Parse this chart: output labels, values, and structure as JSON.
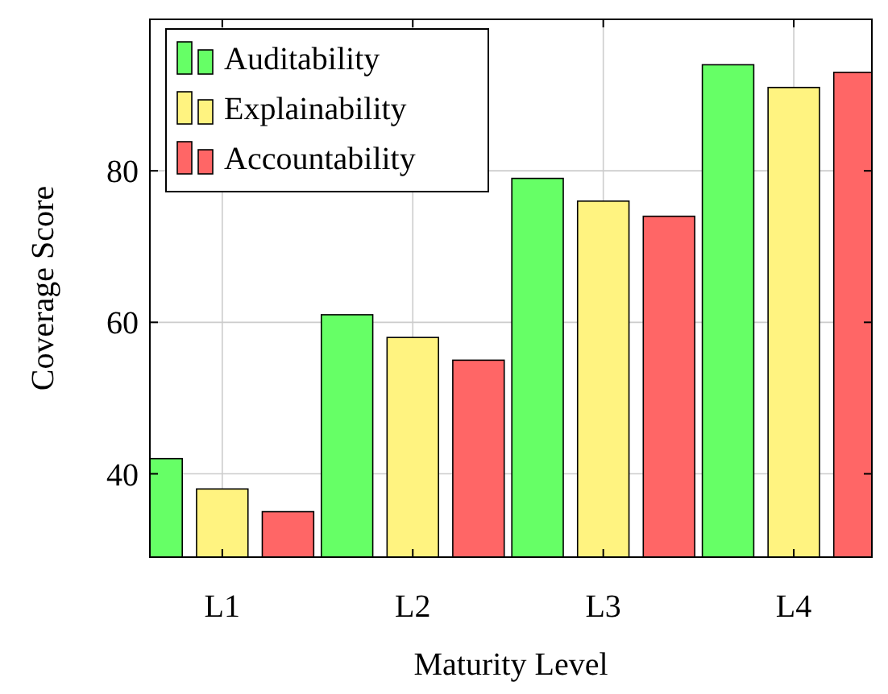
{
  "chart_data": {
    "type": "bar",
    "xlabel": "Maturity Level",
    "ylabel": "Coverage Score",
    "categories": [
      "L1",
      "L2",
      "L3",
      "L4"
    ],
    "series": [
      {
        "name": "Auditability",
        "color": "#66ff66",
        "values": [
          42,
          61,
          79,
          94
        ]
      },
      {
        "name": "Explainability",
        "color": "#fff380",
        "values": [
          38,
          58,
          76,
          91
        ]
      },
      {
        "name": "Accountability",
        "color": "#ff6666",
        "values": [
          35,
          55,
          74,
          93
        ]
      }
    ],
    "ylim": [
      29,
      100
    ],
    "yticks": [
      40,
      60,
      80
    ],
    "grid": true,
    "legend": "top left"
  }
}
